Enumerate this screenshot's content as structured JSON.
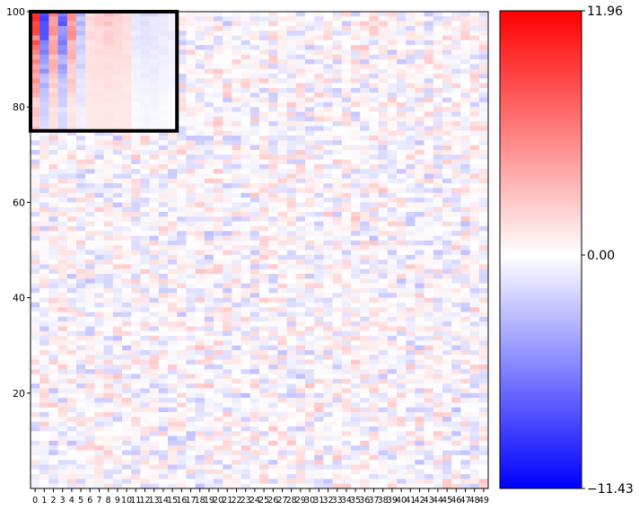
{
  "chart_data": {
    "type": "heatmap",
    "title": "",
    "xlabel": "",
    "ylabel": "",
    "n_columns": 50,
    "n_rows": 100,
    "x_tick_labels": [
      "0",
      "1",
      "2",
      "3",
      "4",
      "5",
      "6",
      "7",
      "8",
      "9",
      "10",
      "11",
      "12",
      "13",
      "14",
      "15",
      "16",
      "17",
      "18",
      "19",
      "20",
      "21",
      "22",
      "23",
      "24",
      "25",
      "26",
      "27",
      "28",
      "29",
      "30",
      "31",
      "32",
      "33",
      "34",
      "35",
      "36",
      "37",
      "38",
      "39",
      "40",
      "41",
      "42",
      "43",
      "44",
      "45",
      "46",
      "47",
      "48",
      "49"
    ],
    "y_ticks": [
      20,
      40,
      60,
      80,
      100
    ],
    "y_tick_labels": [
      "20",
      "40",
      "60",
      "80",
      "100"
    ],
    "ylim": [
      0,
      100
    ],
    "colormap": "bwr",
    "colors": {
      "low": "#0000ff",
      "mid": "#ffffff",
      "high": "#ff0000"
    },
    "colorbar": {
      "min": -11.43,
      "mid": 0.0,
      "max": 11.96,
      "labels": [
        "11.96",
        "0.00",
        "−11.43"
      ]
    },
    "highlight_box": {
      "columns": [
        0,
        15
      ],
      "rows": [
        75,
        100
      ],
      "color": "#000000",
      "row_profile": [
        11.5,
        9.0,
        6.5,
        4.5,
        3.0,
        2.0,
        1.2,
        0.8,
        0.4,
        0.2,
        0.1,
        0.05,
        0.0,
        -0.15,
        -0.3,
        -0.45
      ],
      "column_profile": [
        11.5,
        -9.5,
        7.0,
        -8.5,
        6.5,
        -4.0,
        2.5,
        3.0,
        3.5,
        3.0,
        2.5,
        -1.5,
        -2.0,
        -1.8,
        -1.5,
        -1.2
      ]
    },
    "background_value_range": [
      -3.0,
      3.0
    ],
    "grid": false
  }
}
